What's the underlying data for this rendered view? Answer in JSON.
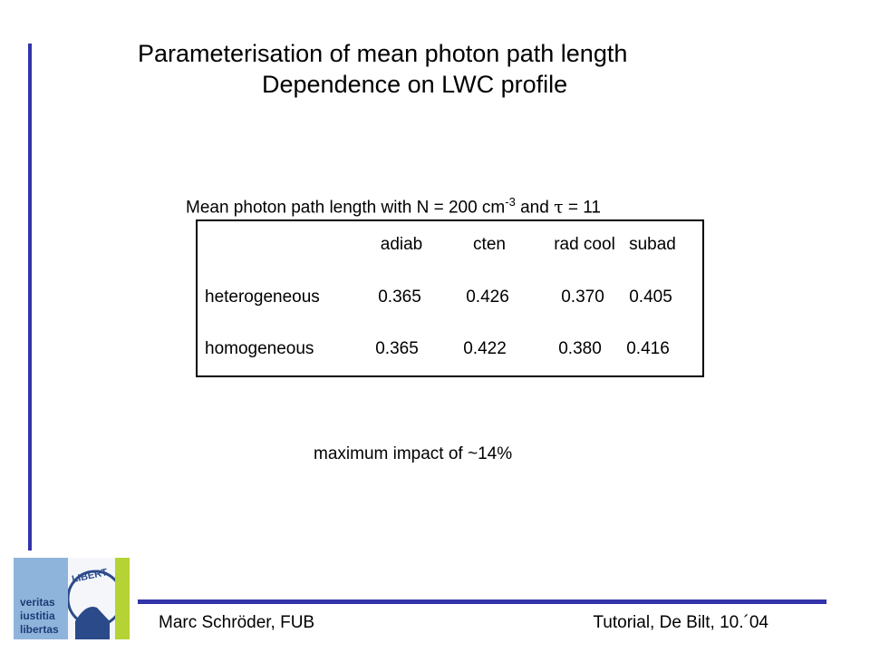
{
  "title": [
    "Parameterisation of mean photon path length",
    "Dependence on LWC profile"
  ],
  "caption": {
    "text": "Mean photon path length with N = 200 cm",
    "superscript": "-3",
    "middle": " and ",
    "symbol": "τ",
    "end": " = 11"
  },
  "table": {
    "columns": [
      "adiab",
      "cten",
      "rad cool",
      "subad"
    ],
    "rows": [
      {
        "label": "heterogeneous",
        "values": [
          "0.365",
          "0.426",
          "0.370",
          "0.405"
        ]
      },
      {
        "label": "homogeneous",
        "values": [
          "0.365",
          "0.422",
          "0.380",
          "0.416"
        ]
      }
    ]
  },
  "note": "maximum impact of ~14%",
  "footer": {
    "left": "Marc Schröder, FUB",
    "right": "Tutorial, De Bilt, 10.´04"
  },
  "logo": {
    "motto": [
      "veritas",
      "iustitia",
      "libertas"
    ],
    "seal": "LIBERT"
  }
}
